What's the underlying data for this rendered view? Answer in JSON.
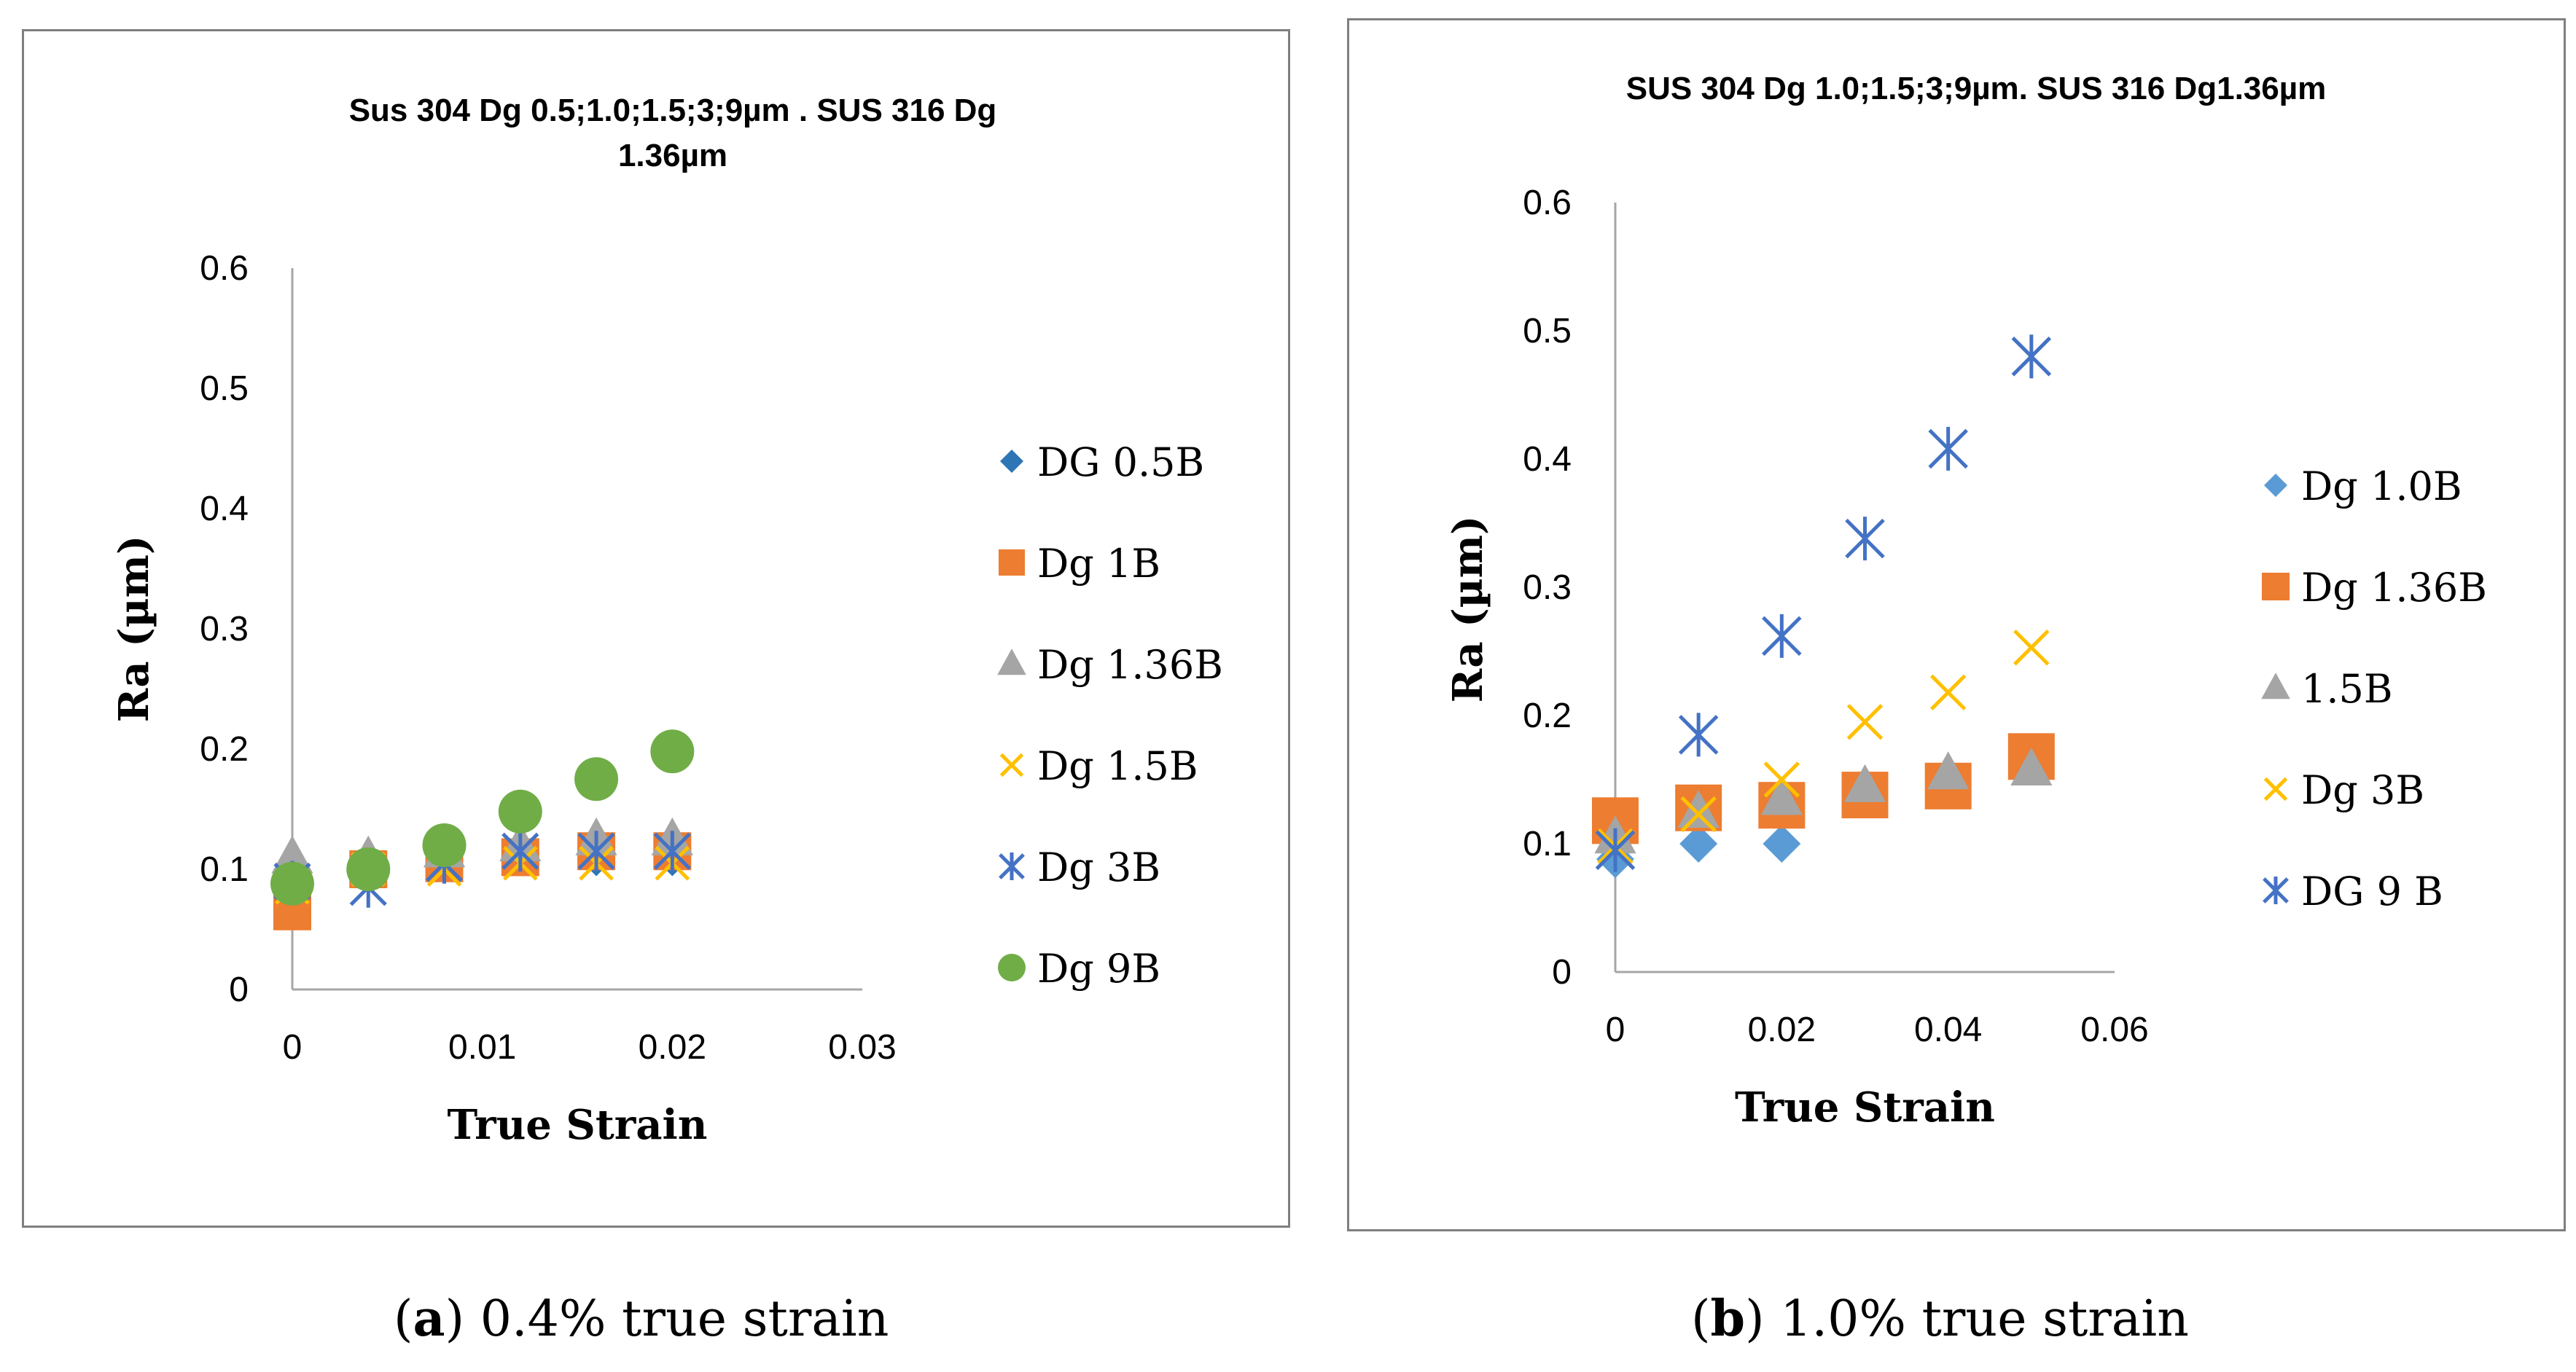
{
  "colors": {
    "dark_blue": "#2e75b6",
    "light_blue": "#5b9bd5",
    "orange": "#ed7d31",
    "gray": "#a5a5a5",
    "gold": "#ffc000",
    "cross_blue": "#4472c4",
    "green": "#70ad47"
  },
  "chart_data": [
    {
      "type": "scatter",
      "title": "Sus 304 Dg 0.5;1.0;1.5;3;9µm . SUS 316 Dg 1.36µm",
      "xlabel": "True Strain",
      "ylabel": "Ra (µm)",
      "xlim": [
        0,
        0.03
      ],
      "ylim": [
        0,
        0.6
      ],
      "xticks": [
        "0",
        "0.01",
        "0.02",
        "0.03"
      ],
      "yticks": [
        "0",
        "0.1",
        "0.2",
        "0.3",
        "0.4",
        "0.5",
        "0.6"
      ],
      "legend_position": "right",
      "series": [
        {
          "name": "DG 0.5B",
          "marker": "diamond",
          "color": "#2e75b6",
          "x": [
            0,
            0.004,
            0.008,
            0.012,
            0.016,
            0.02
          ],
          "y": [
            0.08,
            0.1,
            0.105,
            0.11,
            0.11,
            0.11
          ]
        },
        {
          "name": "Dg 1B",
          "marker": "square",
          "color": "#ed7d31",
          "x": [
            0,
            0.004,
            0.008,
            0.012,
            0.016,
            0.02
          ],
          "y": [
            0.065,
            0.1,
            0.105,
            0.11,
            0.115,
            0.115
          ]
        },
        {
          "name": "Dg 1.36B",
          "marker": "triangle",
          "color": "#a5a5a5",
          "x": [
            0,
            0.004,
            0.008,
            0.012,
            0.016,
            0.02
          ],
          "y": [
            0.11,
            0.11,
            0.115,
            0.12,
            0.125,
            0.125
          ]
        },
        {
          "name": "Dg 1.5B",
          "marker": "x",
          "color": "#ffc000",
          "x": [
            0,
            0.004,
            0.008,
            0.012,
            0.016,
            0.02
          ],
          "y": [
            0.085,
            0.1,
            0.1,
            0.105,
            0.105,
            0.105
          ]
        },
        {
          "name": "Dg 3B",
          "marker": "asterisk",
          "color": "#4472c4",
          "x": [
            0,
            0.004,
            0.008,
            0.012,
            0.016,
            0.02
          ],
          "y": [
            0.09,
            0.085,
            0.105,
            0.115,
            0.115,
            0.115
          ]
        },
        {
          "name": "Dg 9B",
          "marker": "circle",
          "color": "#70ad47",
          "x": [
            0,
            0.004,
            0.008,
            0.012,
            0.016,
            0.02
          ],
          "y": [
            0.088,
            0.1,
            0.12,
            0.148,
            0.175,
            0.198
          ]
        }
      ]
    },
    {
      "type": "scatter",
      "title": "SUS 304 Dg 1.0;1.5;3;9µm. SUS 316 Dg1.36µm",
      "xlabel": "True Strain",
      "ylabel": "Ra (µm)",
      "xlim": [
        0,
        0.06
      ],
      "ylim": [
        0,
        0.6
      ],
      "xticks": [
        "0",
        "0.02",
        "0.04",
        "0.06"
      ],
      "yticks": [
        "0",
        "0.1",
        "0.2",
        "0.3",
        "0.4",
        "0.5",
        "0.6"
      ],
      "legend_position": "right",
      "series": [
        {
          "name": "Dg 1.0B",
          "marker": "diamond",
          "color": "#5b9bd5",
          "x": [
            0,
            0.01,
            0.02
          ],
          "y": [
            0.088,
            0.1,
            0.1
          ]
        },
        {
          "name": "Dg 1.36B",
          "marker": "square",
          "color": "#ed7d31",
          "x": [
            0,
            0.01,
            0.02,
            0.03,
            0.04,
            0.05
          ],
          "y": [
            0.118,
            0.128,
            0.13,
            0.138,
            0.145,
            0.168
          ]
        },
        {
          "name": "1.5B",
          "marker": "triangle",
          "color": "#a5a5a5",
          "x": [
            0,
            0.01,
            0.02,
            0.03,
            0.04,
            0.05
          ],
          "y": [
            0.105,
            0.125,
            0.135,
            0.145,
            0.155,
            0.158
          ]
        },
        {
          "name": "Dg 3B",
          "marker": "x",
          "color": "#ffc000",
          "x": [
            0,
            0.01,
            0.02,
            0.03,
            0.04,
            0.05
          ],
          "y": [
            0.098,
            0.123,
            0.15,
            0.195,
            0.218,
            0.253
          ]
        },
        {
          "name": "DG  9 B",
          "marker": "asterisk",
          "color": "#4472c4",
          "x": [
            0,
            0.01,
            0.02,
            0.03,
            0.04,
            0.05
          ],
          "y": [
            0.095,
            0.185,
            0.262,
            0.338,
            0.408,
            0.48
          ]
        }
      ]
    }
  ],
  "captions": [
    {
      "label": "a",
      "text": " 0.4% true strain"
    },
    {
      "label": "b",
      "text": " 1.0% true strain"
    }
  ]
}
